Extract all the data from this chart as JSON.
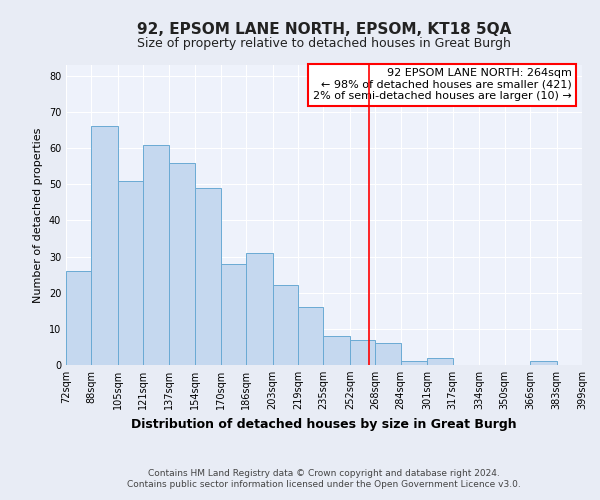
{
  "title": "92, EPSOM LANE NORTH, EPSOM, KT18 5QA",
  "subtitle": "Size of property relative to detached houses in Great Burgh",
  "xlabel": "Distribution of detached houses by size in Great Burgh",
  "ylabel": "Number of detached properties",
  "bar_left_edges": [
    72,
    88,
    105,
    121,
    137,
    154,
    170,
    186,
    203,
    219,
    235,
    252,
    268,
    284,
    301,
    317,
    334,
    350,
    366,
    383
  ],
  "bar_right_edges": [
    88,
    105,
    121,
    137,
    154,
    170,
    186,
    203,
    219,
    235,
    252,
    268,
    284,
    301,
    317,
    334,
    350,
    366,
    383,
    399
  ],
  "bar_heights": [
    26,
    66,
    51,
    61,
    56,
    49,
    28,
    31,
    22,
    16,
    8,
    7,
    6,
    1,
    2,
    0,
    0,
    0,
    1,
    0
  ],
  "bar_color": "#c5d8ef",
  "bar_edge_color": "#6aaad4",
  "property_line_x": 264,
  "property_line_color": "red",
  "annotation_title": "92 EPSOM LANE NORTH: 264sqm",
  "annotation_line1": "← 98% of detached houses are smaller (421)",
  "annotation_line2": "2% of semi-detached houses are larger (10) →",
  "annotation_box_color": "white",
  "annotation_box_edge_color": "red",
  "x_tick_labels": [
    "72sqm",
    "88sqm",
    "105sqm",
    "121sqm",
    "137sqm",
    "154sqm",
    "170sqm",
    "186sqm",
    "203sqm",
    "219sqm",
    "235sqm",
    "252sqm",
    "268sqm",
    "284sqm",
    "301sqm",
    "317sqm",
    "334sqm",
    "350sqm",
    "366sqm",
    "383sqm",
    "399sqm"
  ],
  "x_tick_positions": [
    72,
    88,
    105,
    121,
    137,
    154,
    170,
    186,
    203,
    219,
    235,
    252,
    268,
    284,
    301,
    317,
    334,
    350,
    366,
    383,
    399
  ],
  "xlim": [
    72,
    399
  ],
  "ylim": [
    0,
    83
  ],
  "yticks": [
    0,
    10,
    20,
    30,
    40,
    50,
    60,
    70,
    80
  ],
  "footer1": "Contains HM Land Registry data © Crown copyright and database right 2024.",
  "footer2": "Contains public sector information licensed under the Open Government Licence v3.0.",
  "background_color": "#e8ecf5",
  "plot_background_color": "#eef2fb",
  "grid_color": "#ffffff",
  "title_fontsize": 11,
  "subtitle_fontsize": 9,
  "xlabel_fontsize": 9,
  "ylabel_fontsize": 8,
  "tick_fontsize": 7,
  "footer_fontsize": 6.5,
  "annotation_fontsize": 8
}
